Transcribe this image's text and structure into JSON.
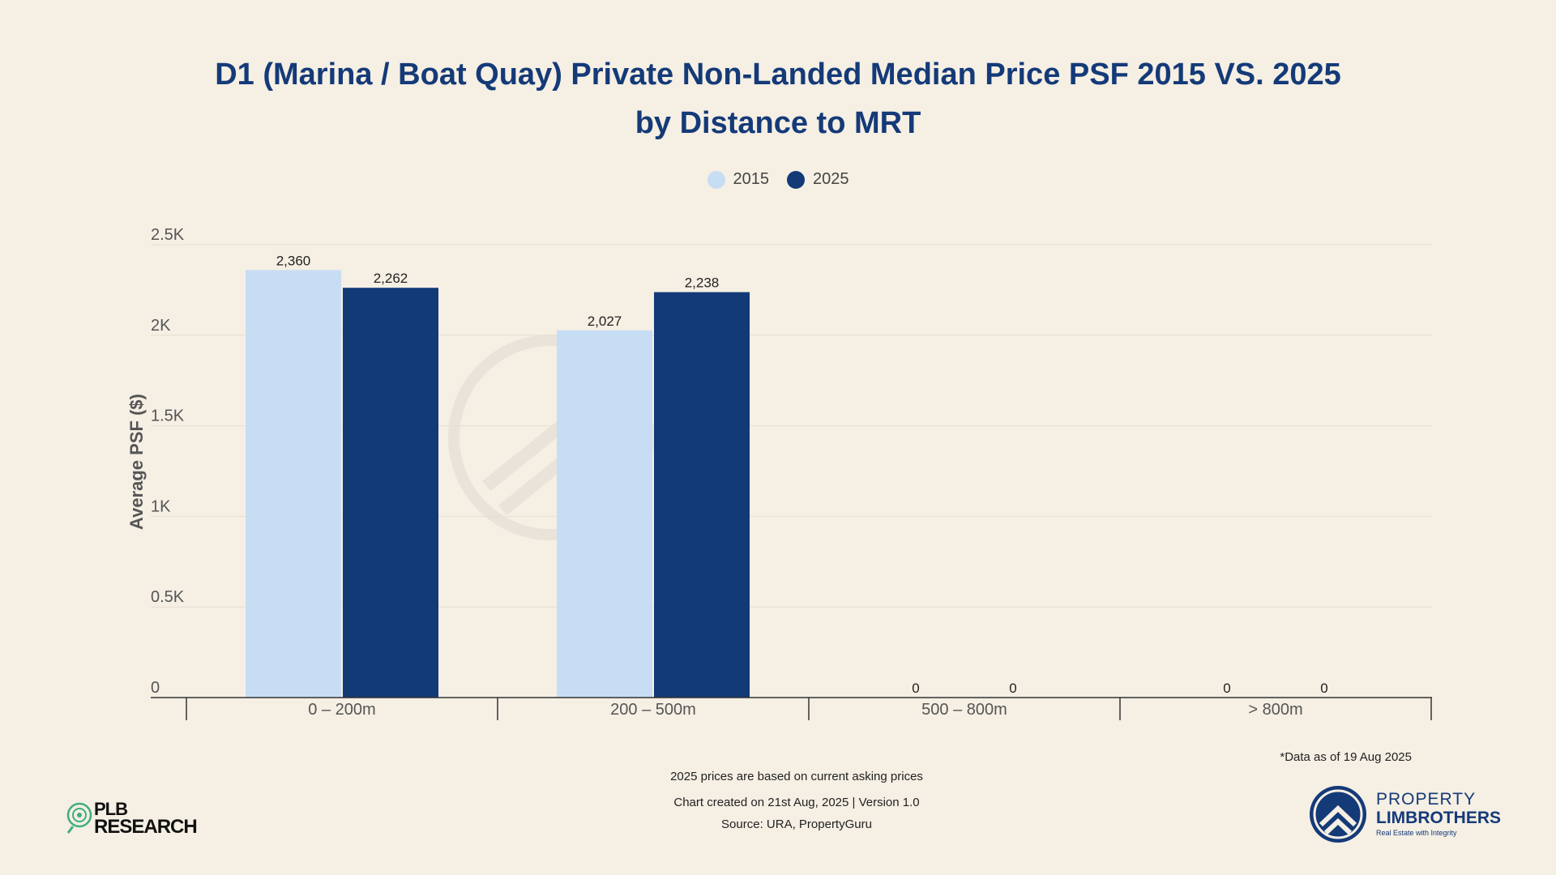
{
  "title_line1": "D1 (Marina / Boat Quay) Private Non-Landed Median Price PSF 2015 VS. 2025",
  "title_line2": "by Distance to MRT",
  "notes": {
    "data_as_of": "*Data as of 19 Aug 2025",
    "asking": "2025 prices are based on current asking prices",
    "created": "Chart created on 21st Aug, 2025 | Version 1.0",
    "source": "Source: URA, PropertyGuru"
  },
  "logos": {
    "plb_line1": "PLB",
    "plb_line2": "RESEARCH",
    "brand_line1": "PROPERTY",
    "brand_line2": "LIMBROTHERS",
    "brand_tagline": "Real Estate with Integrity"
  },
  "colors": {
    "series_2015": "#c7ddf4",
    "series_2025": "#123a77",
    "title": "#143a78",
    "background": "#f5efe4"
  },
  "chart_data": {
    "type": "bar",
    "categories": [
      "0 – 200m",
      "200 – 500m",
      "500 – 800m",
      "> 800m"
    ],
    "series": [
      {
        "name": "2015",
        "values": [
          2360,
          2027,
          0,
          0
        ],
        "labels": [
          "2,360",
          "2,027",
          "0",
          "0"
        ]
      },
      {
        "name": "2025",
        "values": [
          2262,
          2238,
          0,
          0
        ],
        "labels": [
          "2,262",
          "2,238",
          "0",
          "0"
        ]
      }
    ],
    "ylabel": "Average PSF ($)",
    "xlabel": "",
    "ylim": [
      0,
      2500
    ],
    "yticks": [
      0,
      500,
      1000,
      1500,
      2000,
      2500
    ],
    "ytick_labels": [
      "0",
      "0.5K",
      "1K",
      "1.5K",
      "2K",
      "2.5K"
    ],
    "legend_position": "top-center",
    "grid": true
  }
}
